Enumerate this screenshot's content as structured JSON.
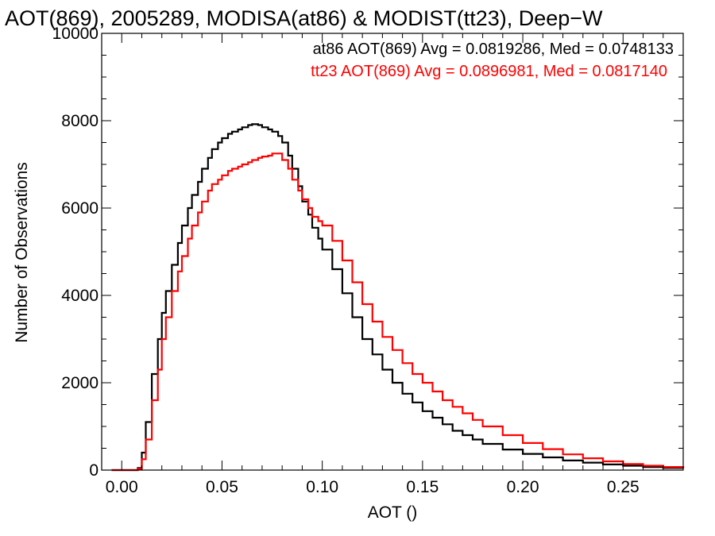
{
  "chart_data": {
    "type": "line",
    "step": true,
    "title": "AOT(869), 2005289, MODISA(at86) & MODIST(tt23), Deep−W",
    "xlabel": "AOT ()",
    "ylabel": "Number of Observations",
    "xlim": [
      -0.01,
      0.28
    ],
    "ylim": [
      0,
      10000
    ],
    "xticks": [
      0.0,
      0.05,
      0.1,
      0.15,
      0.2,
      0.25
    ],
    "xtick_labels": [
      "0.00",
      "0.05",
      "0.10",
      "0.15",
      "0.20",
      "0.25"
    ],
    "yticks": [
      0,
      2000,
      4000,
      6000,
      8000,
      10000
    ],
    "ytick_labels": [
      "0",
      "2000",
      "4000",
      "6000",
      "8000",
      "10000"
    ],
    "grid": false,
    "legend_placement": "top-right",
    "annotations": [
      {
        "text": "at86 AOT(869) Avg = 0.0819286, Med = 0.0748133",
        "color": "#000000"
      },
      {
        "text": "tt23 AOT(869) Avg = 0.0896981, Med = 0.0817140",
        "color": "#ff0000"
      }
    ],
    "series": [
      {
        "color": "#000000",
        "x": [
          -0.005,
          0.0,
          0.005,
          0.008,
          0.01,
          0.012,
          0.015,
          0.018,
          0.02,
          0.022,
          0.025,
          0.028,
          0.03,
          0.033,
          0.035,
          0.038,
          0.04,
          0.043,
          0.045,
          0.048,
          0.05,
          0.053,
          0.055,
          0.058,
          0.06,
          0.063,
          0.065,
          0.068,
          0.07,
          0.073,
          0.075,
          0.078,
          0.08,
          0.083,
          0.085,
          0.088,
          0.09,
          0.093,
          0.095,
          0.098,
          0.1,
          0.105,
          0.11,
          0.115,
          0.12,
          0.125,
          0.13,
          0.135,
          0.14,
          0.145,
          0.15,
          0.155,
          0.16,
          0.165,
          0.17,
          0.175,
          0.18,
          0.19,
          0.2,
          0.21,
          0.22,
          0.23,
          0.24,
          0.25,
          0.26,
          0.27,
          0.28
        ],
        "y": [
          0,
          0,
          0,
          50,
          400,
          1100,
          2200,
          3000,
          3600,
          4100,
          4700,
          5200,
          5600,
          6000,
          6300,
          6600,
          6900,
          7150,
          7350,
          7500,
          7600,
          7700,
          7750,
          7800,
          7850,
          7900,
          7920,
          7900,
          7850,
          7800,
          7750,
          7650,
          7500,
          7200,
          6900,
          6500,
          6150,
          5850,
          5550,
          5300,
          5050,
          4600,
          4050,
          3500,
          3000,
          2650,
          2300,
          2000,
          1750,
          1550,
          1350,
          1200,
          1050,
          900,
          800,
          700,
          600,
          470,
          370,
          290,
          220,
          170,
          130,
          100,
          70,
          50,
          40
        ]
      },
      {
        "color": "#ff0000",
        "x": [
          -0.005,
          0.0,
          0.005,
          0.008,
          0.01,
          0.012,
          0.015,
          0.018,
          0.02,
          0.022,
          0.025,
          0.028,
          0.03,
          0.033,
          0.035,
          0.038,
          0.04,
          0.043,
          0.045,
          0.048,
          0.05,
          0.053,
          0.055,
          0.058,
          0.06,
          0.063,
          0.065,
          0.068,
          0.07,
          0.073,
          0.075,
          0.078,
          0.08,
          0.083,
          0.085,
          0.088,
          0.09,
          0.093,
          0.095,
          0.098,
          0.1,
          0.105,
          0.11,
          0.115,
          0.12,
          0.125,
          0.13,
          0.135,
          0.14,
          0.145,
          0.15,
          0.155,
          0.16,
          0.165,
          0.17,
          0.175,
          0.18,
          0.19,
          0.2,
          0.21,
          0.22,
          0.23,
          0.24,
          0.25,
          0.26,
          0.27,
          0.28
        ],
        "y": [
          0,
          0,
          0,
          30,
          250,
          700,
          1600,
          2300,
          3000,
          3500,
          4100,
          4550,
          4900,
          5300,
          5600,
          5900,
          6150,
          6400,
          6550,
          6650,
          6750,
          6850,
          6900,
          6950,
          7000,
          7050,
          7100,
          7150,
          7180,
          7200,
          7250,
          7250,
          7100,
          6900,
          6650,
          6400,
          6200,
          6000,
          5800,
          5700,
          5600,
          5250,
          4800,
          4300,
          3800,
          3400,
          3050,
          2750,
          2450,
          2200,
          2000,
          1800,
          1600,
          1450,
          1300,
          1150,
          1000,
          800,
          620,
          480,
          360,
          270,
          200,
          140,
          100,
          70,
          50
        ]
      }
    ]
  }
}
